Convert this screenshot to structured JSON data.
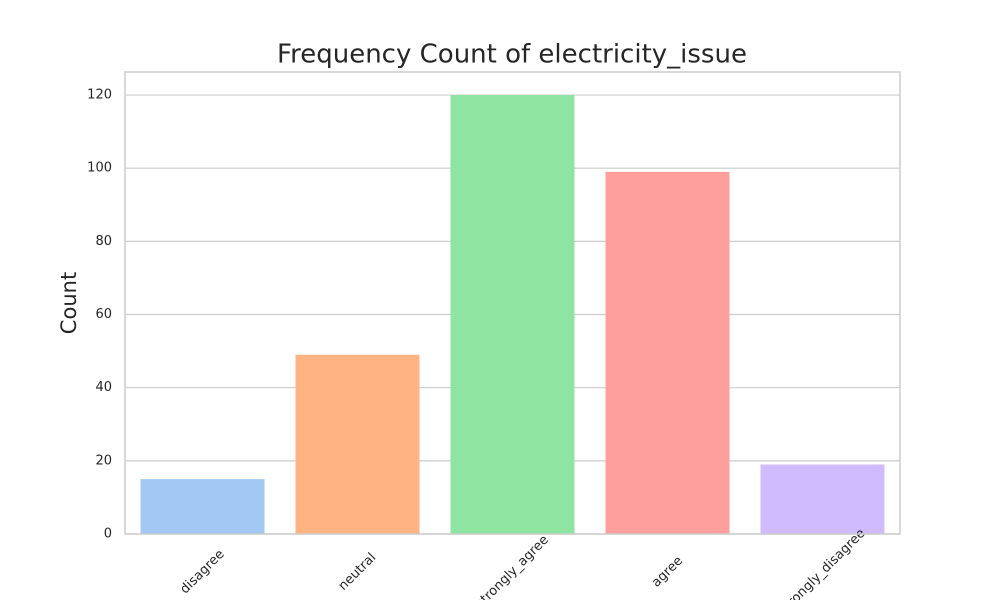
{
  "chart_data": {
    "type": "bar",
    "title": "Frequency Count of electricity_issue",
    "y_label": "Count",
    "categories": [
      "disagree",
      "neutral",
      "strongly_agree",
      "agree",
      "strongly_disagree"
    ],
    "values": [
      15,
      49,
      120,
      99,
      19
    ],
    "colors": [
      "#a1c9f4",
      "#ffb482",
      "#8de5a1",
      "#ff9f9b",
      "#d0bbff"
    ],
    "ylim": [
      0,
      126.3
    ],
    "yticks": [
      0,
      20,
      40,
      60,
      80,
      100,
      120
    ],
    "grid": true
  }
}
